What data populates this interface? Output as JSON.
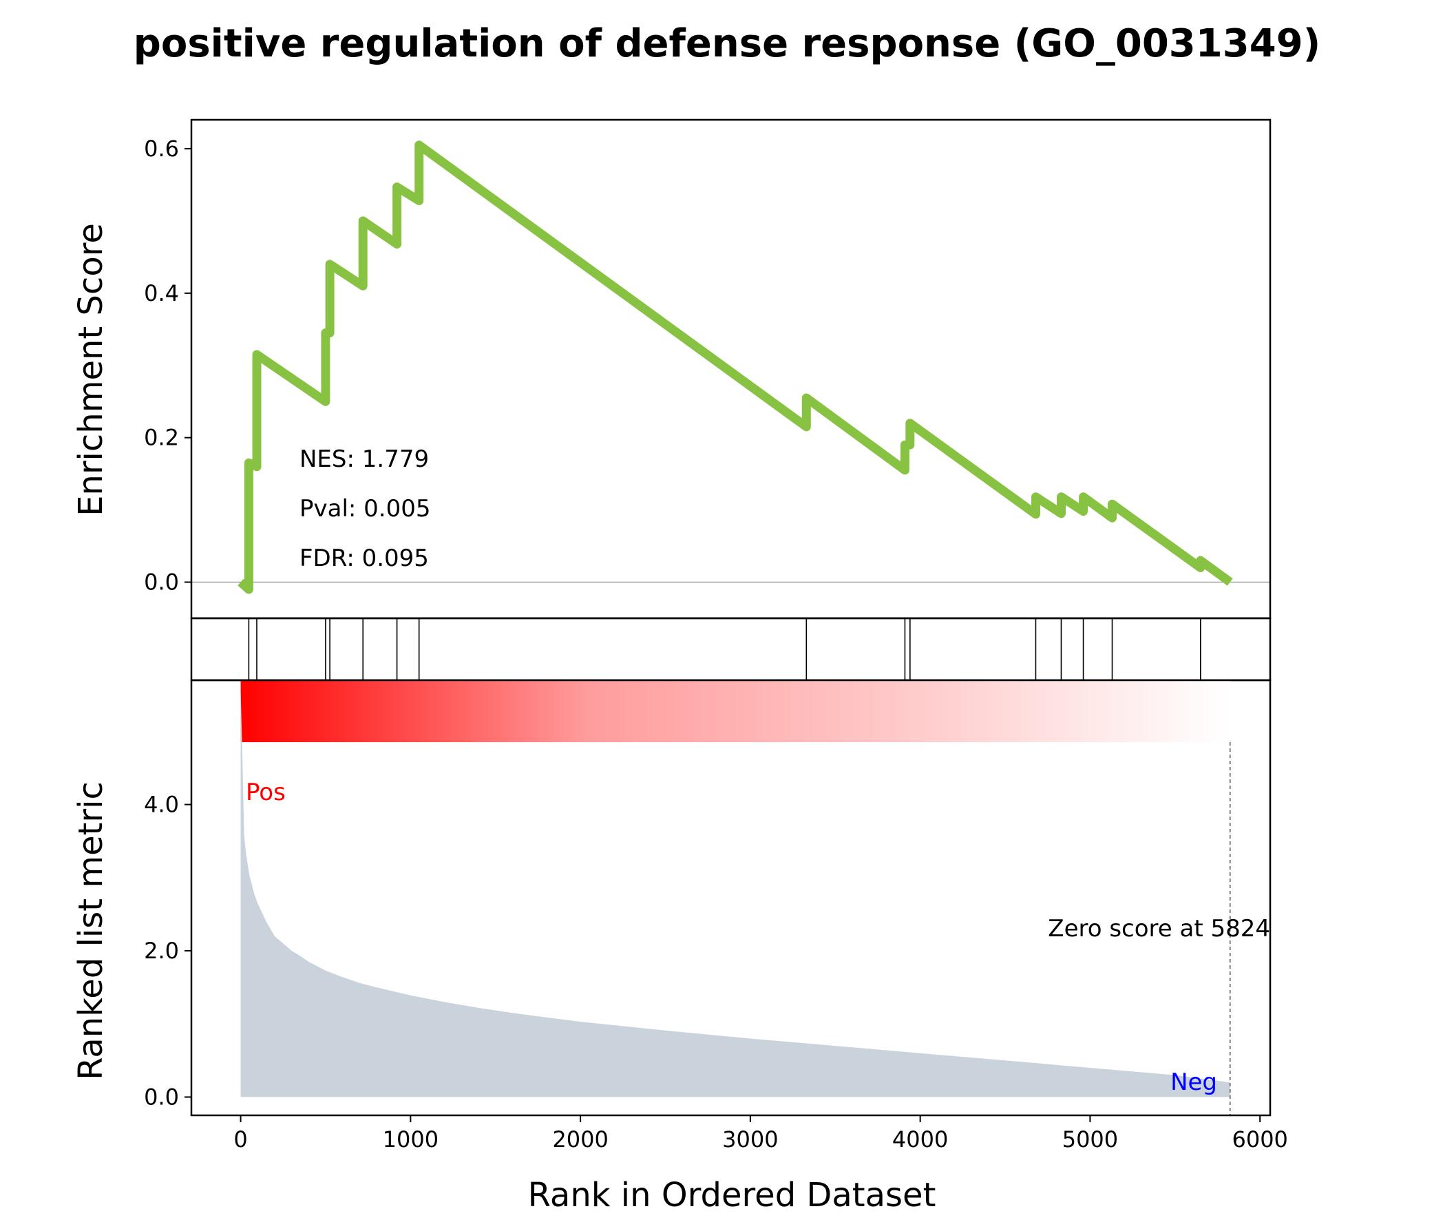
{
  "chart_data": {
    "type": "line",
    "title": "positive regulation of defense response (GO_0031349)",
    "xlabel": "Rank in Ordered Dataset",
    "xlim": [
      -290,
      6060
    ],
    "xticks": [
      "0",
      "1000",
      "2000",
      "3000",
      "4000",
      "5000",
      "6000"
    ],
    "xtick_values": [
      0,
      1000,
      2000,
      3000,
      4000,
      5000,
      6000
    ],
    "colors": {
      "es_line": "#88c242",
      "metric_fill": "#cad3db",
      "pos_label": "#ff0000",
      "neg_label": "#0000ff",
      "heat_start": "#ff0000",
      "heat_end": "#ffffff"
    },
    "es_panel": {
      "ylabel": "Enrichment Score",
      "ylim": [
        -0.05,
        0.64
      ],
      "yticks": [
        "0.0",
        "0.2",
        "0.4",
        "0.6"
      ],
      "ytick_values": [
        0.0,
        0.2,
        0.4,
        0.6
      ],
      "stats": {
        "nes": "NES: 1.779",
        "pval": "Pval: 0.005",
        "fdr": "FDR: 0.095"
      },
      "series": [
        {
          "x": [
            0,
            48,
            48,
            95,
            95,
            500,
            500,
            525,
            525,
            720,
            720,
            920,
            920,
            1050,
            1050,
            3330,
            3330,
            3910,
            3910,
            3940,
            3940,
            4680,
            4680,
            4830,
            4830,
            4960,
            4960,
            5130,
            5130,
            5650,
            5650,
            5824
          ],
          "y": [
            0.0,
            -0.01,
            0.165,
            0.16,
            0.315,
            0.25,
            0.345,
            0.345,
            0.44,
            0.41,
            0.5,
            0.468,
            0.547,
            0.528,
            0.605,
            0.215,
            0.255,
            0.155,
            0.19,
            0.19,
            0.22,
            0.094,
            0.118,
            0.095,
            0.118,
            0.098,
            0.118,
            0.089,
            0.108,
            0.02,
            0.03,
            0.0
          ]
        }
      ]
    },
    "hits_panel": {
      "hit_ranks": [
        48,
        95,
        500,
        525,
        720,
        920,
        1050,
        3330,
        3910,
        3940,
        4680,
        4830,
        4960,
        5130,
        5650
      ]
    },
    "metric_panel": {
      "ylabel": "Ranked list metric",
      "ylim": [
        -0.25,
        5.7
      ],
      "yticks": [
        "0.0",
        "2.0",
        "4.0"
      ],
      "ytick_values": [
        0.0,
        2.0,
        4.0
      ],
      "pos_label": "Pos",
      "neg_label": "Neg",
      "zero_score_label": "Zero score at 5824",
      "zero_score_rank": 5824,
      "series": [
        {
          "x": [
            0,
            10,
            20,
            30,
            50,
            80,
            100,
            150,
            200,
            250,
            300,
            350,
            400,
            500,
            600,
            700,
            800,
            1000,
            1200,
            1400,
            1600,
            1800,
            2000,
            2500,
            3000,
            3500,
            4000,
            4500,
            5000,
            5500,
            5824
          ],
          "y": [
            5.55,
            4.7,
            3.6,
            3.35,
            3.05,
            2.78,
            2.65,
            2.4,
            2.2,
            2.1,
            2.0,
            1.93,
            1.85,
            1.73,
            1.64,
            1.56,
            1.5,
            1.39,
            1.3,
            1.22,
            1.15,
            1.09,
            1.03,
            0.91,
            0.8,
            0.7,
            0.6,
            0.5,
            0.4,
            0.3,
            0.2
          ]
        }
      ]
    }
  }
}
